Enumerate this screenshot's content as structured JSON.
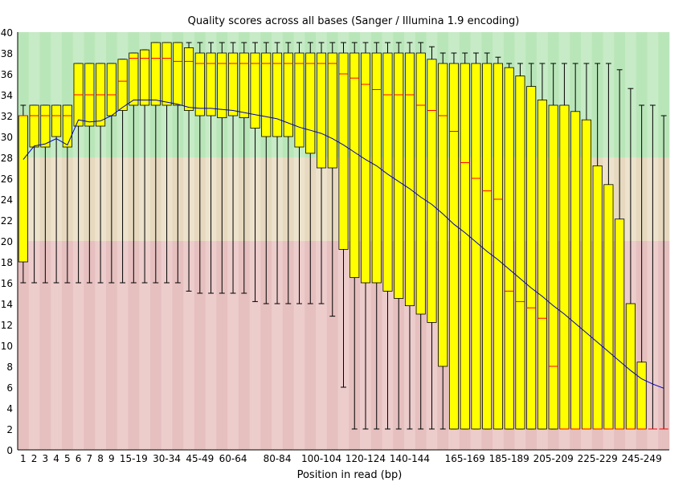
{
  "chart_data": {
    "type": "box",
    "title": "Quality scores across all bases (Sanger / Illumina 1.9 encoding)",
    "xlabel": "Position in read (bp)",
    "ylabel": "",
    "ylim": [
      0,
      40
    ],
    "y_ticks": [
      0,
      2,
      4,
      6,
      8,
      10,
      12,
      14,
      16,
      18,
      20,
      22,
      24,
      26,
      28,
      30,
      32,
      34,
      36,
      38,
      40
    ],
    "zones": [
      {
        "from": 28,
        "to": 40,
        "color": "#b9e6b9",
        "color_alt": "#c6ebc6"
      },
      {
        "from": 20,
        "to": 28,
        "color": "#e6d9bf",
        "color_alt": "#ede2cc"
      },
      {
        "from": 0,
        "to": 20,
        "color": "#e6bfbf",
        "color_alt": "#edcccc"
      }
    ],
    "box_color": "#ffff00",
    "median_color": "#ff0000",
    "mean_color": "#0000bb",
    "categories": [
      "1",
      "2",
      "3",
      "4",
      "5",
      "6",
      "7",
      "8",
      "9",
      "10-14",
      "15-19",
      "20-24",
      "25-29",
      "30-34",
      "35-39",
      "40-44",
      "45-49",
      "50-54",
      "55-59",
      "60-64",
      "65-69",
      "70-74",
      "75-79",
      "80-84",
      "85-89",
      "90-94",
      "95-99",
      "100-104",
      "105-109",
      "110-114",
      "115-119",
      "120-124",
      "125-129",
      "130-134",
      "135-139",
      "140-144",
      "145-149",
      "150-154",
      "155-159",
      "160-164",
      "165-169",
      "170-174",
      "175-179",
      "180-184",
      "185-189",
      "190-194",
      "195-199",
      "200-204",
      "205-209",
      "210-214",
      "215-219",
      "220-224",
      "225-229",
      "230-234",
      "235-239",
      "240-244",
      "245-249",
      "250-254",
      "255-259"
    ],
    "x_tick_labels": [
      {
        "index": 0,
        "label": "1"
      },
      {
        "index": 1,
        "label": "2"
      },
      {
        "index": 2,
        "label": "3"
      },
      {
        "index": 3,
        "label": "4"
      },
      {
        "index": 4,
        "label": "5"
      },
      {
        "index": 5,
        "label": "6"
      },
      {
        "index": 6,
        "label": "7"
      },
      {
        "index": 7,
        "label": "8"
      },
      {
        "index": 8,
        "label": "9"
      },
      {
        "index": 10,
        "label": "15-19"
      },
      {
        "index": 13,
        "label": "30-34"
      },
      {
        "index": 16,
        "label": "45-49"
      },
      {
        "index": 19,
        "label": "60-64"
      },
      {
        "index": 23,
        "label": "80-84"
      },
      {
        "index": 27,
        "label": "100-104"
      },
      {
        "index": 31,
        "label": "120-124"
      },
      {
        "index": 35,
        "label": "140-144"
      },
      {
        "index": 40,
        "label": "165-169"
      },
      {
        "index": 44,
        "label": "185-189"
      },
      {
        "index": 48,
        "label": "205-209"
      },
      {
        "index": 52,
        "label": "225-229"
      },
      {
        "index": 56,
        "label": "245-249"
      }
    ],
    "whisker_low": [
      16,
      16,
      16,
      16,
      16,
      16,
      16,
      16,
      16,
      16,
      16,
      16,
      16,
      16,
      16,
      15.2,
      15,
      15,
      15,
      15,
      15,
      14.2,
      14,
      14,
      14,
      14,
      14,
      14,
      12.8,
      6,
      2,
      2,
      2,
      2,
      2,
      2,
      2,
      2,
      2,
      2,
      2,
      2,
      2,
      2,
      2,
      2,
      2,
      2,
      2,
      2,
      2,
      2,
      2,
      2,
      2,
      2,
      2,
      2,
      2
    ],
    "q1": [
      18,
      29,
      29,
      30,
      29,
      31,
      31,
      31,
      32,
      32.5,
      33,
      33,
      33,
      33,
      33,
      32.5,
      32,
      32,
      31.8,
      32,
      31.8,
      30.8,
      30,
      30,
      30,
      29,
      28.4,
      27,
      27,
      19.2,
      16.5,
      16,
      16,
      15.2,
      14.5,
      13.8,
      13,
      12.2,
      8,
      2,
      2,
      2,
      2,
      2,
      2,
      2,
      2,
      2,
      2,
      2,
      2,
      2,
      2,
      2,
      2,
      2,
      2,
      2,
      2
    ],
    "median": [
      32,
      32,
      32,
      32,
      32,
      34,
      34,
      34,
      34,
      35.3,
      37.5,
      37.5,
      37.5,
      37.5,
      37.2,
      37.2,
      37,
      37,
      37,
      37,
      37,
      37,
      37,
      37,
      37,
      37,
      37,
      37,
      37,
      36,
      35.6,
      35,
      34.5,
      34,
      34,
      34,
      33,
      32.5,
      32,
      30.5,
      27.5,
      26,
      24.8,
      24,
      15.2,
      14.2,
      13.6,
      12.6,
      8,
      2,
      2,
      2,
      2,
      2,
      2,
      2,
      2,
      2,
      2
    ],
    "q3": [
      32,
      33,
      33,
      33,
      33,
      37,
      37,
      37,
      37,
      37.4,
      38,
      38.3,
      39,
      39,
      39,
      38.5,
      38,
      38,
      38,
      38,
      38,
      38,
      38,
      38,
      38,
      38,
      38,
      38,
      38,
      38,
      38,
      38,
      38,
      38,
      38,
      38,
      38,
      37.4,
      37,
      37,
      37,
      37,
      37,
      37,
      36.6,
      35.8,
      34.8,
      33.5,
      33,
      33,
      32.4,
      31.6,
      27.2,
      25.4,
      22.1,
      14,
      8.4,
      2,
      2
    ],
    "whisker_high": [
      33,
      33,
      33,
      33,
      33,
      37,
      37,
      37,
      37,
      37.4,
      38,
      38.3,
      39,
      39,
      39,
      39,
      39,
      39,
      39,
      39,
      39,
      39,
      39,
      39,
      39,
      39,
      39,
      39,
      39,
      39,
      39,
      39,
      39,
      39,
      39,
      39,
      39,
      38.6,
      38,
      38,
      38,
      38,
      38,
      37.6,
      37,
      37,
      37,
      37,
      37,
      37,
      37,
      37,
      37,
      37,
      36.4,
      34.6,
      33,
      33,
      32
    ],
    "mean": [
      27.8,
      29.1,
      29.3,
      29.8,
      29.2,
      31.6,
      31.4,
      31.5,
      32,
      32.8,
      33.5,
      33.5,
      33.5,
      33.3,
      33.1,
      32.8,
      32.7,
      32.7,
      32.6,
      32.5,
      32.3,
      32.1,
      31.9,
      31.7,
      31.3,
      30.9,
      30.6,
      30.3,
      29.8,
      29.2,
      28.5,
      27.8,
      27.2,
      26.4,
      25.7,
      25,
      24.2,
      23.5,
      22.6,
      21.6,
      20.8,
      19.9,
      19,
      18.2,
      17.3,
      16.4,
      15.5,
      14.7,
      13.8,
      13,
      12.1,
      11.2,
      10.3,
      9.4,
      8.5,
      7.6,
      6.8,
      6.3,
      5.9
    ]
  }
}
